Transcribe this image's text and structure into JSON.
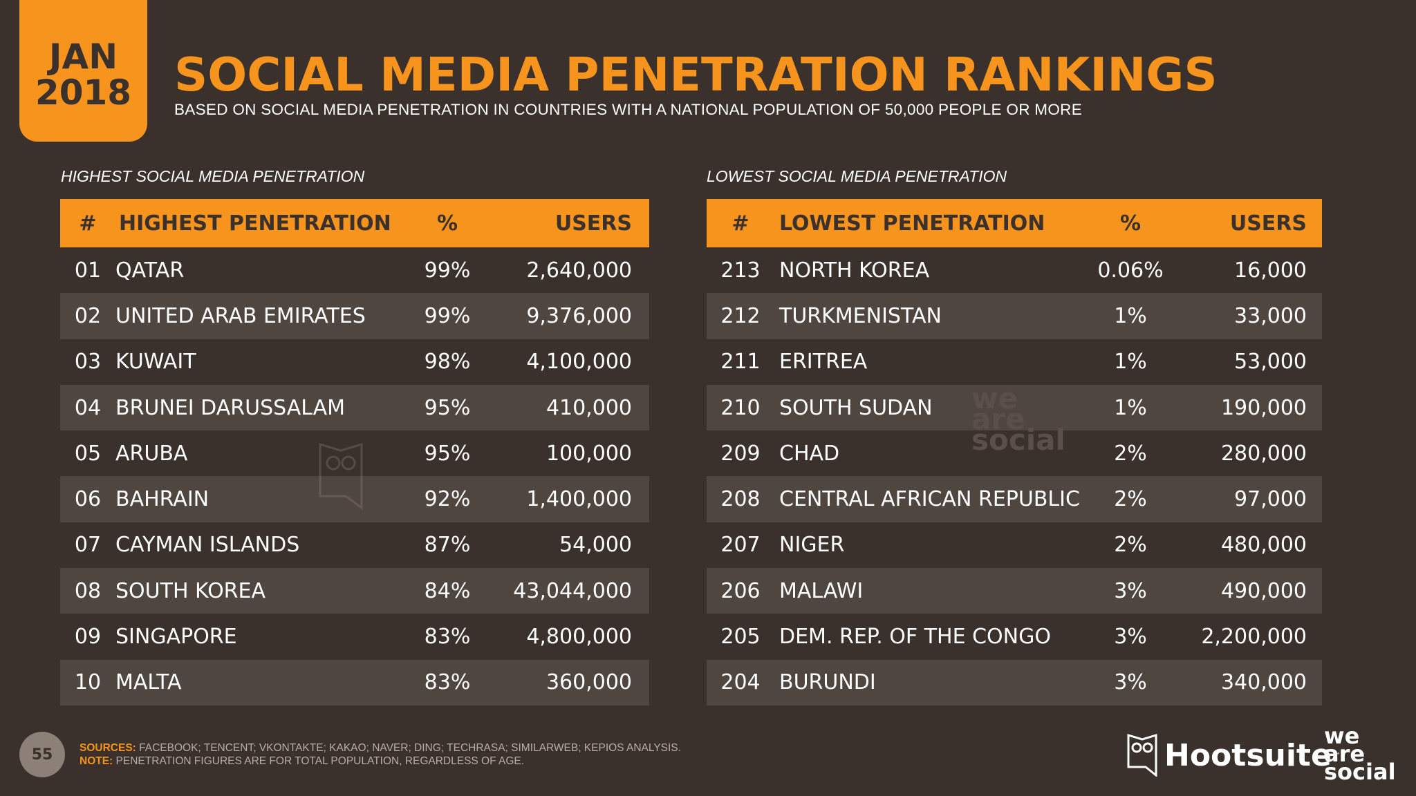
{
  "badge": {
    "month": "JAN",
    "year": "2018"
  },
  "title": "SOCIAL MEDIA PENETRATION RANKINGS",
  "subtitle": "BASED ON SOCIAL MEDIA PENETRATION IN COUNTRIES WITH A NATIONAL POPULATION OF 50,000 PEOPLE OR MORE",
  "left": {
    "section_label": "HIGHEST SOCIAL MEDIA PENETRATION",
    "headers": {
      "rank": "#",
      "name": "HIGHEST PENETRATION",
      "pct": "%",
      "users": "USERS"
    },
    "rows": [
      {
        "rank": "01",
        "name": "QATAR",
        "pct": "99%",
        "users": "2,640,000"
      },
      {
        "rank": "02",
        "name": "UNITED ARAB EMIRATES",
        "pct": "99%",
        "users": "9,376,000"
      },
      {
        "rank": "03",
        "name": "KUWAIT",
        "pct": "98%",
        "users": "4,100,000"
      },
      {
        "rank": "04",
        "name": "BRUNEI DARUSSALAM",
        "pct": "95%",
        "users": "410,000"
      },
      {
        "rank": "05",
        "name": "ARUBA",
        "pct": "95%",
        "users": "100,000"
      },
      {
        "rank": "06",
        "name": "BAHRAIN",
        "pct": "92%",
        "users": "1,400,000"
      },
      {
        "rank": "07",
        "name": "CAYMAN ISLANDS",
        "pct": "87%",
        "users": "54,000"
      },
      {
        "rank": "08",
        "name": "SOUTH KOREA",
        "pct": "84%",
        "users": "43,044,000"
      },
      {
        "rank": "09",
        "name": "SINGAPORE",
        "pct": "83%",
        "users": "4,800,000"
      },
      {
        "rank": "10",
        "name": "MALTA",
        "pct": "83%",
        "users": "360,000"
      }
    ]
  },
  "right": {
    "section_label": "LOWEST SOCIAL MEDIA PENETRATION",
    "headers": {
      "rank": "#",
      "name": "LOWEST PENETRATION",
      "pct": "%",
      "users": "USERS"
    },
    "rows": [
      {
        "rank": "213",
        "name": "NORTH KOREA",
        "pct": "0.06%",
        "users": "16,000"
      },
      {
        "rank": "212",
        "name": "TURKMENISTAN",
        "pct": "1%",
        "users": "33,000"
      },
      {
        "rank": "211",
        "name": "ERITREA",
        "pct": "1%",
        "users": "53,000"
      },
      {
        "rank": "210",
        "name": "SOUTH SUDAN",
        "pct": "1%",
        "users": "190,000"
      },
      {
        "rank": "209",
        "name": "CHAD",
        "pct": "2%",
        "users": "280,000"
      },
      {
        "rank": "208",
        "name": "CENTRAL AFRICAN REPUBLIC",
        "pct": "2%",
        "users": "97,000"
      },
      {
        "rank": "207",
        "name": "NIGER",
        "pct": "2%",
        "users": "480,000"
      },
      {
        "rank": "206",
        "name": "MALAWI",
        "pct": "3%",
        "users": "490,000"
      },
      {
        "rank": "205",
        "name": "DEM. REP. OF THE CONGO",
        "pct": "3%",
        "users": "2,200,000"
      },
      {
        "rank": "204",
        "name": "BURUNDI",
        "pct": "3%",
        "users": "340,000"
      }
    ]
  },
  "watermark": {
    "line1": "we",
    "line2": "are",
    "line3": "social",
    "icon": "owl-icon"
  },
  "footer": {
    "page_number": "55",
    "sources_label": "SOURCES:",
    "sources_text": " FACEBOOK; TENCENT; VKONTAKTE; KAKAO; NAVER; DING; TECHRASA; SIMILARWEB; KEPIOS ANALYSIS.",
    "note_label": "NOTE:",
    "note_text": " PENETRATION FIGURES ARE FOR TOTAL POPULATION, REGARDLESS OF AGE.",
    "hootsuite": "Hootsuite",
    "hootsuite_tm": "™",
    "was_line1": "we",
    "was_line2": "are",
    "was_line3": "social"
  },
  "colors": {
    "accent": "#f7941d",
    "background": "#3a312c",
    "row_alt": "#504640"
  }
}
